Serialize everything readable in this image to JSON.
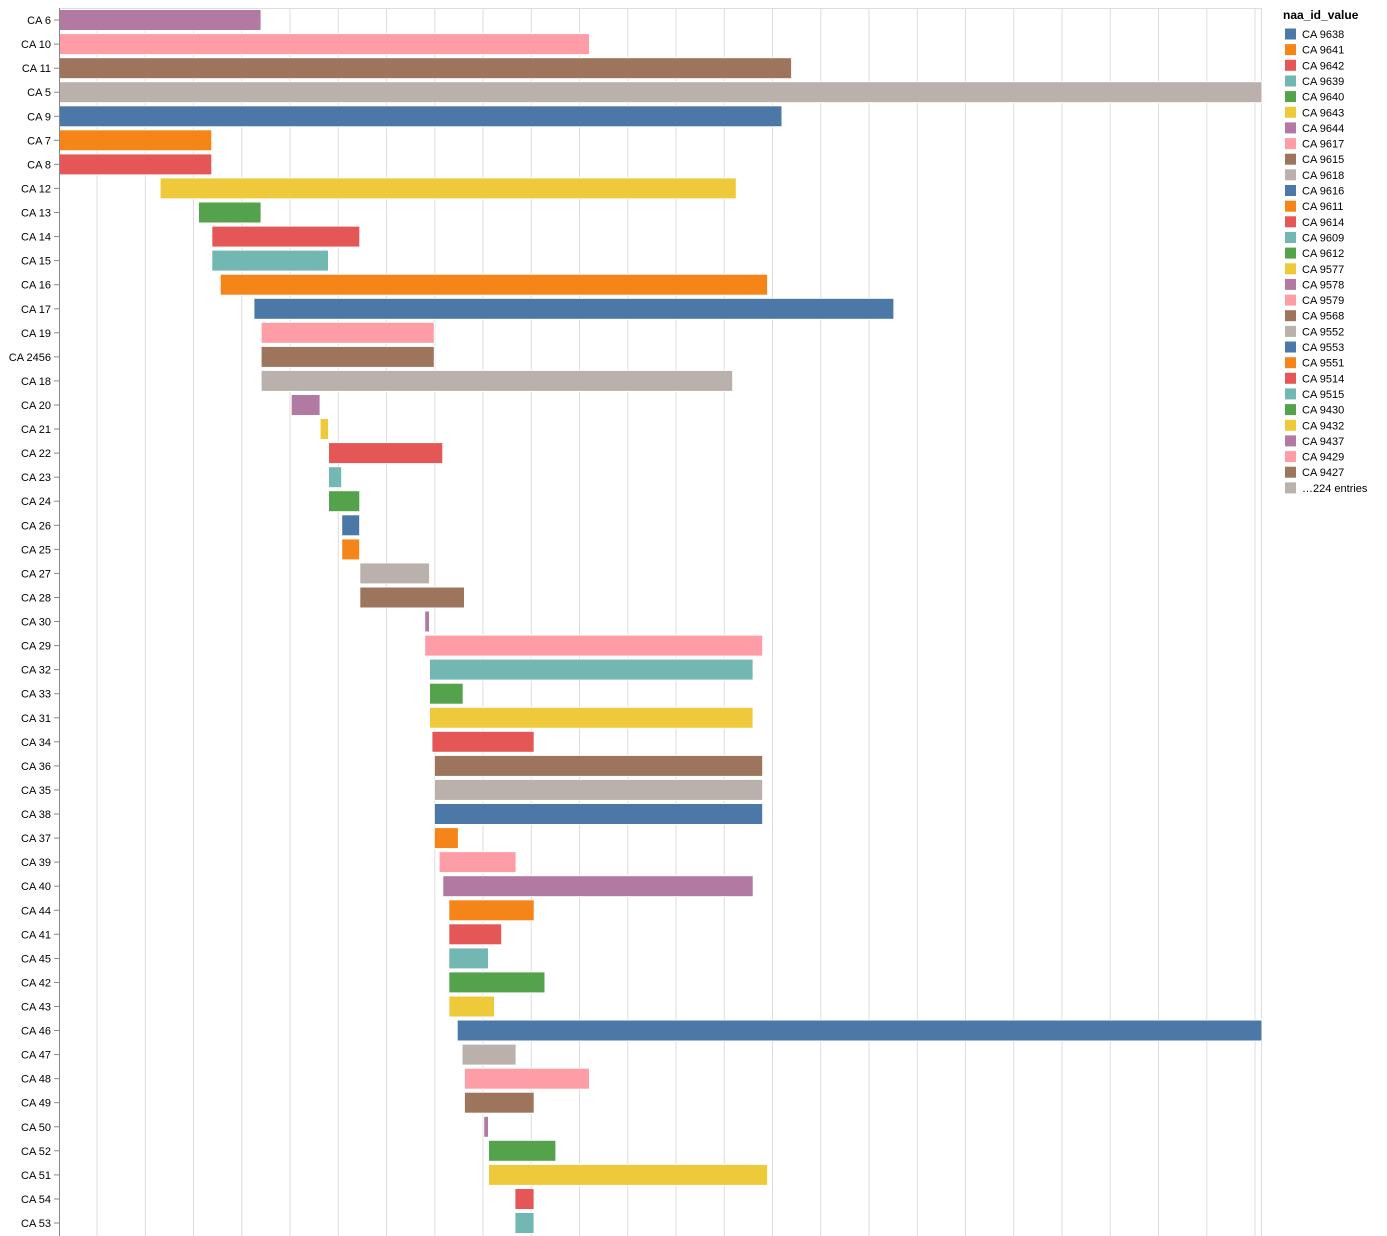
{
  "chart_data": {
    "type": "bar",
    "orientation": "horizontal-gantt",
    "title": "",
    "xlabel": "",
    "ylabel": "",
    "grid": true,
    "legend_position": "right",
    "x_range": [
      0,
      100
    ],
    "legend": {
      "title": "naa_id_value",
      "entries": [
        {
          "label": "CA 9638",
          "color": "#4c78a8"
        },
        {
          "label": "CA 9641",
          "color": "#f58518"
        },
        {
          "label": "CA 9642",
          "color": "#e45756"
        },
        {
          "label": "CA 9639",
          "color": "#72b7b2"
        },
        {
          "label": "CA 9640",
          "color": "#54a24b"
        },
        {
          "label": "CA 9643",
          "color": "#eeca3b"
        },
        {
          "label": "CA 9644",
          "color": "#b279a2"
        },
        {
          "label": "CA 9617",
          "color": "#ff9da6"
        },
        {
          "label": "CA 9615",
          "color": "#9d755d"
        },
        {
          "label": "CA 9618",
          "color": "#bab0ac"
        },
        {
          "label": "CA 9616",
          "color": "#4c78a8"
        },
        {
          "label": "CA 9611",
          "color": "#f58518"
        },
        {
          "label": "CA 9614",
          "color": "#e45756"
        },
        {
          "label": "CA 9609",
          "color": "#72b7b2"
        },
        {
          "label": "CA 9612",
          "color": "#54a24b"
        },
        {
          "label": "CA 9577",
          "color": "#eeca3b"
        },
        {
          "label": "CA 9578",
          "color": "#b279a2"
        },
        {
          "label": "CA 9579",
          "color": "#ff9da6"
        },
        {
          "label": "CA 9568",
          "color": "#9d755d"
        },
        {
          "label": "CA 9552",
          "color": "#bab0ac"
        },
        {
          "label": "CA 9553",
          "color": "#4c78a8"
        },
        {
          "label": "CA 9551",
          "color": "#f58518"
        },
        {
          "label": "CA 9514",
          "color": "#e45756"
        },
        {
          "label": "CA 9515",
          "color": "#72b7b2"
        },
        {
          "label": "CA 9430",
          "color": "#54a24b"
        },
        {
          "label": "CA 9432",
          "color": "#eeca3b"
        },
        {
          "label": "CA 9437",
          "color": "#b279a2"
        },
        {
          "label": "CA 9429",
          "color": "#ff9da6"
        },
        {
          "label": "CA 9427",
          "color": "#9d755d"
        },
        {
          "label": "…224 entries",
          "color": "#bab0ac"
        }
      ]
    },
    "bars": [
      {
        "category": "CA 6",
        "start": 0,
        "end": 16.8,
        "color": "#b279a2"
      },
      {
        "category": "CA 10",
        "start": 0,
        "end": 44.1,
        "color": "#ff9da6"
      },
      {
        "category": "CA 11",
        "start": 0,
        "end": 60.9,
        "color": "#9d755d"
      },
      {
        "category": "CA 5",
        "start": 0,
        "end": 100,
        "color": "#bab0ac"
      },
      {
        "category": "CA 9",
        "start": 0,
        "end": 60.1,
        "color": "#4c78a8"
      },
      {
        "category": "CA 7",
        "start": 0,
        "end": 12.7,
        "color": "#f58518"
      },
      {
        "category": "CA 8",
        "start": 0,
        "end": 12.7,
        "color": "#e45756"
      },
      {
        "category": "CA 12",
        "start": 8.4,
        "end": 56.3,
        "color": "#eeca3b"
      },
      {
        "category": "CA 13",
        "start": 11.6,
        "end": 16.8,
        "color": "#54a24b"
      },
      {
        "category": "CA 14",
        "start": 12.7,
        "end": 25.0,
        "color": "#e45756"
      },
      {
        "category": "CA 15",
        "start": 12.7,
        "end": 22.4,
        "color": "#72b7b2"
      },
      {
        "category": "CA 16",
        "start": 13.4,
        "end": 58.9,
        "color": "#f58518"
      },
      {
        "category": "CA 17",
        "start": 16.2,
        "end": 69.4,
        "color": "#4c78a8"
      },
      {
        "category": "CA 19",
        "start": 16.8,
        "end": 31.2,
        "color": "#ff9da6"
      },
      {
        "category": "CA 2456",
        "start": 16.8,
        "end": 31.2,
        "color": "#9d755d"
      },
      {
        "category": "CA 18",
        "start": 16.8,
        "end": 56.0,
        "color": "#bab0ac"
      },
      {
        "category": "CA 20",
        "start": 19.3,
        "end": 21.7,
        "color": "#b279a2"
      },
      {
        "category": "CA 21",
        "start": 21.7,
        "end": 22.4,
        "color": "#eeca3b"
      },
      {
        "category": "CA 22",
        "start": 22.4,
        "end": 31.9,
        "color": "#e45756"
      },
      {
        "category": "CA 23",
        "start": 22.4,
        "end": 23.5,
        "color": "#72b7b2"
      },
      {
        "category": "CA 24",
        "start": 22.4,
        "end": 25.0,
        "color": "#54a24b"
      },
      {
        "category": "CA 26",
        "start": 23.5,
        "end": 25.0,
        "color": "#4c78a8"
      },
      {
        "category": "CA 25",
        "start": 23.5,
        "end": 25.0,
        "color": "#f58518"
      },
      {
        "category": "CA 27",
        "start": 25.0,
        "end": 30.8,
        "color": "#bab0ac"
      },
      {
        "category": "CA 28",
        "start": 25.0,
        "end": 33.7,
        "color": "#9d755d"
      },
      {
        "category": "CA 30",
        "start": 30.4,
        "end": 30.8,
        "color": "#b279a2"
      },
      {
        "category": "CA 29",
        "start": 30.4,
        "end": 58.5,
        "color": "#ff9da6"
      },
      {
        "category": "CA 32",
        "start": 30.8,
        "end": 57.7,
        "color": "#72b7b2"
      },
      {
        "category": "CA 33",
        "start": 30.8,
        "end": 33.6,
        "color": "#54a24b"
      },
      {
        "category": "CA 31",
        "start": 30.8,
        "end": 57.7,
        "color": "#eeca3b"
      },
      {
        "category": "CA 34",
        "start": 31.0,
        "end": 39.5,
        "color": "#e45756"
      },
      {
        "category": "CA 36",
        "start": 31.2,
        "end": 58.5,
        "color": "#9d755d"
      },
      {
        "category": "CA 35",
        "start": 31.2,
        "end": 58.5,
        "color": "#bab0ac"
      },
      {
        "category": "CA 38",
        "start": 31.2,
        "end": 58.5,
        "color": "#4c78a8"
      },
      {
        "category": "CA 37",
        "start": 31.2,
        "end": 33.2,
        "color": "#f58518"
      },
      {
        "category": "CA 39",
        "start": 31.6,
        "end": 38.0,
        "color": "#ff9da6"
      },
      {
        "category": "CA 40",
        "start": 31.9,
        "end": 57.7,
        "color": "#b279a2"
      },
      {
        "category": "CA 44",
        "start": 32.4,
        "end": 39.5,
        "color": "#f58518"
      },
      {
        "category": "CA 41",
        "start": 32.4,
        "end": 36.8,
        "color": "#e45756"
      },
      {
        "category": "CA 45",
        "start": 32.4,
        "end": 35.7,
        "color": "#72b7b2"
      },
      {
        "category": "CA 42",
        "start": 32.4,
        "end": 40.4,
        "color": "#54a24b"
      },
      {
        "category": "CA 43",
        "start": 32.4,
        "end": 36.2,
        "color": "#eeca3b"
      },
      {
        "category": "CA 46",
        "start": 33.1,
        "end": 100,
        "color": "#4c78a8"
      },
      {
        "category": "CA 47",
        "start": 33.5,
        "end": 38.0,
        "color": "#bab0ac"
      },
      {
        "category": "CA 48",
        "start": 33.7,
        "end": 44.1,
        "color": "#ff9da6"
      },
      {
        "category": "CA 49",
        "start": 33.7,
        "end": 39.5,
        "color": "#9d755d"
      },
      {
        "category": "CA 50",
        "start": 35.3,
        "end": 35.7,
        "color": "#b279a2"
      },
      {
        "category": "CA 52",
        "start": 35.7,
        "end": 41.3,
        "color": "#54a24b"
      },
      {
        "category": "CA 51",
        "start": 35.7,
        "end": 58.9,
        "color": "#eeca3b"
      },
      {
        "category": "CA 54",
        "start": 37.9,
        "end": 39.5,
        "color": "#e45756"
      },
      {
        "category": "CA 53",
        "start": 37.9,
        "end": 39.5,
        "color": "#72b7b2"
      }
    ]
  }
}
